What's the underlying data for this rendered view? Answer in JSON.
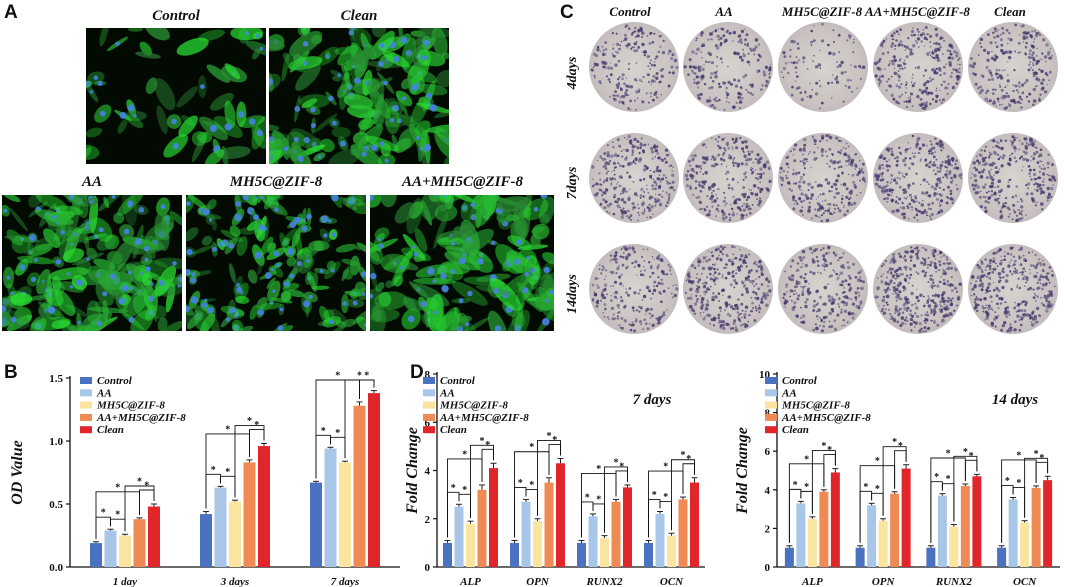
{
  "panel_letters": {
    "a": "A",
    "b": "B",
    "c": "C",
    "d": "D"
  },
  "panel_a": {
    "labels": [
      "Control",
      "Clean",
      "AA",
      "MH5C@ZIF-8",
      "AA+MH5C@ZIF-8"
    ]
  },
  "panel_c": {
    "columns": [
      "Control",
      "AA",
      "MH5C@ZIF-8",
      "AA+MH5C@ZIF-8",
      "Clean"
    ],
    "rows": [
      "4days",
      "7days",
      "14days"
    ]
  },
  "colors": {
    "Control": "#4a72c0",
    "AA": "#a7c6e8",
    "MH5C@ZIF-8": "#fbe3a0",
    "AA+MH5C@ZIF-8": "#f08a55",
    "Clean": "#e0252b"
  },
  "chart_data": [
    {
      "id": "B",
      "type": "bar",
      "title": "",
      "ylabel": "OD Value",
      "xlabel": "",
      "ylim": [
        0,
        1.5
      ],
      "yticks": [
        "0.0",
        "0.5",
        "1.0",
        "1.5"
      ],
      "categories": [
        "1 day",
        "3 days",
        "7 days"
      ],
      "legend_position": "top-left",
      "significance": "*",
      "series": [
        {
          "name": "Control",
          "values": [
            0.19,
            0.42,
            0.67
          ],
          "errors": [
            0.01,
            0.02,
            0.01
          ]
        },
        {
          "name": "AA",
          "values": [
            0.29,
            0.63,
            0.94
          ],
          "errors": [
            0.01,
            0.01,
            0.01
          ]
        },
        {
          "name": "MH5C@ZIF-8",
          "values": [
            0.25,
            0.52,
            0.83
          ],
          "errors": [
            0.01,
            0.01,
            0.01
          ]
        },
        {
          "name": "AA+MH5C@ZIF-8",
          "values": [
            0.38,
            0.83,
            1.28
          ],
          "errors": [
            0.01,
            0.02,
            0.03
          ]
        },
        {
          "name": "Clean",
          "values": [
            0.48,
            0.96,
            1.38
          ],
          "errors": [
            0.02,
            0.02,
            0.02
          ]
        }
      ]
    },
    {
      "id": "D1",
      "type": "bar",
      "title": "7 days",
      "ylabel": "Fold Change",
      "xlabel": "",
      "ylim": [
        0,
        8
      ],
      "yticks": [
        "0",
        "2",
        "4",
        "6",
        "8"
      ],
      "categories": [
        "ALP",
        "OPN",
        "RUNX2",
        "OCN"
      ],
      "legend_position": "top-left",
      "significance": "*",
      "series": [
        {
          "name": "Control",
          "values": [
            1.0,
            1.0,
            1.0,
            1.0
          ],
          "errors": [
            0.1,
            0.1,
            0.1,
            0.1
          ]
        },
        {
          "name": "AA",
          "values": [
            2.5,
            2.7,
            2.1,
            2.2
          ],
          "errors": [
            0.1,
            0.1,
            0.1,
            0.1
          ]
        },
        {
          "name": "MH5C@ZIF-8",
          "values": [
            1.8,
            1.9,
            1.2,
            1.3
          ],
          "errors": [
            0.1,
            0.1,
            0.1,
            0.1
          ]
        },
        {
          "name": "AA+MH5C@ZIF-8",
          "values": [
            3.2,
            3.5,
            2.7,
            2.8
          ],
          "errors": [
            0.2,
            0.2,
            0.1,
            0.1
          ]
        },
        {
          "name": "Clean",
          "values": [
            4.1,
            4.3,
            3.3,
            3.5
          ],
          "errors": [
            0.2,
            0.2,
            0.1,
            0.2
          ]
        }
      ]
    },
    {
      "id": "D2",
      "type": "bar",
      "title": "14 days",
      "ylabel": "Fold Change",
      "xlabel": "",
      "ylim": [
        0,
        10
      ],
      "yticks": [
        "0",
        "2",
        "4",
        "6",
        "8",
        "10"
      ],
      "categories": [
        "ALP",
        "OPN",
        "RUNX2",
        "OCN"
      ],
      "legend_position": "top-left",
      "significance": "*",
      "series": [
        {
          "name": "Control",
          "values": [
            1.0,
            1.0,
            1.0,
            1.0
          ],
          "errors": [
            0.1,
            0.1,
            0.1,
            0.1
          ]
        },
        {
          "name": "AA",
          "values": [
            3.3,
            3.2,
            3.7,
            3.5
          ],
          "errors": [
            0.1,
            0.1,
            0.1,
            0.1
          ]
        },
        {
          "name": "MH5C@ZIF-8",
          "values": [
            2.5,
            2.4,
            2.1,
            2.3
          ],
          "errors": [
            0.1,
            0.1,
            0.1,
            0.1
          ]
        },
        {
          "name": "AA+MH5C@ZIF-8",
          "values": [
            3.9,
            3.8,
            4.2,
            4.1
          ],
          "errors": [
            0.1,
            0.1,
            0.1,
            0.1
          ]
        },
        {
          "name": "Clean",
          "values": [
            4.9,
            5.1,
            4.7,
            4.5
          ],
          "errors": [
            0.2,
            0.2,
            0.1,
            0.2
          ]
        }
      ]
    }
  ]
}
